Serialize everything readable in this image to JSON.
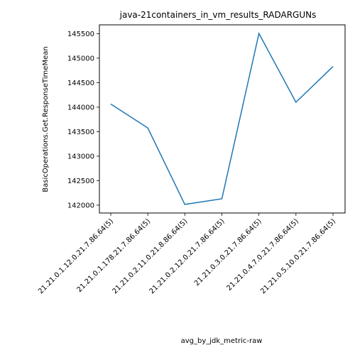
{
  "chart_data": {
    "type": "line",
    "title": "java-21containers_in_vm_results_RADARGUNs",
    "xlabel": "avg_by_jdk_metric-raw",
    "ylabel": "BasicOperations.Get.ResponseTimeMean",
    "categories": [
      "21.21.0.1.12.0.21.7.86.64(5)",
      "21.21.0.1.178.21.7.86.64(5)",
      "21.21.0.2.11.0.21.8.86.64(5)",
      "21.21.0.2.12.0.21.7.86.64(5)",
      "21.21.0.3.0.21.7.86.64(5)",
      "21.21.0.4.7.0.21.7.86.64(5)",
      "21.21.0.5.10.0.21.7.86.64(5)"
    ],
    "series": [
      {
        "values": [
          144065,
          143575,
          142015,
          142130,
          145505,
          144100,
          144830
        ],
        "color": "#1f77b4"
      }
    ],
    "yticks": [
      142000,
      142500,
      143000,
      143500,
      144000,
      144500,
      145000,
      145500
    ],
    "ylim": [
      141840,
      145680
    ],
    "grid": false,
    "legend": false
  }
}
